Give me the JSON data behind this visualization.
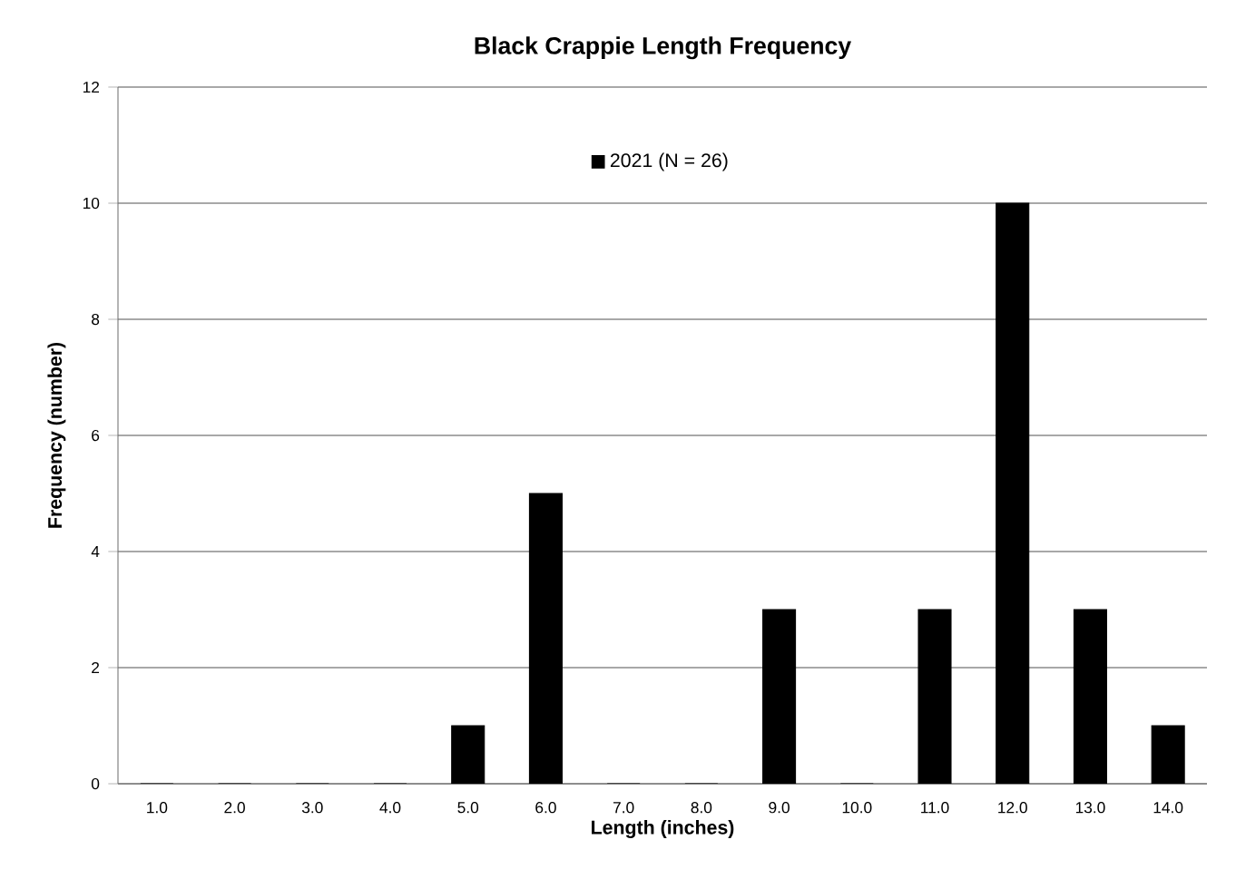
{
  "chart_data": {
    "type": "bar",
    "title": "Black Crappie Length Frequency",
    "xlabel": "Length (inches)",
    "ylabel": "Frequency (number)",
    "categories": [
      "1.0",
      "2.0",
      "3.0",
      "4.0",
      "5.0",
      "6.0",
      "7.0",
      "8.0",
      "9.0",
      "10.0",
      "11.0",
      "12.0",
      "13.0",
      "14.0"
    ],
    "series": [
      {
        "name": "2021 (N = 26)",
        "color": "#000000",
        "values": [
          0,
          0,
          0,
          0,
          1,
          5,
          0,
          0,
          3,
          0,
          3,
          10,
          3,
          1
        ]
      }
    ],
    "ylim": [
      0,
      12
    ],
    "yticks": [
      0,
      2,
      4,
      6,
      8,
      10,
      12
    ],
    "grid": "y",
    "legend": "top"
  }
}
